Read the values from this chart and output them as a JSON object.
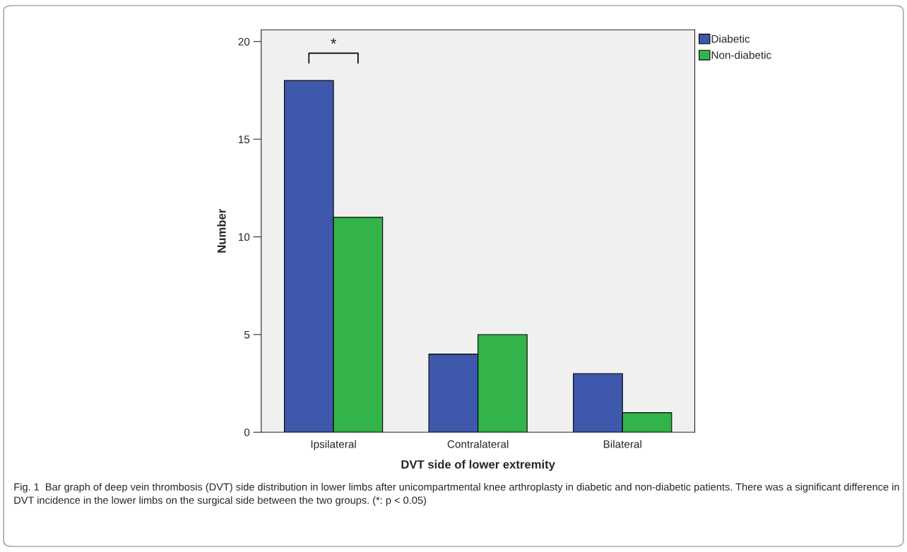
{
  "chart_data": {
    "type": "bar",
    "xlabel": "DVT side of lower extremity",
    "ylabel": "Number",
    "categories": [
      "Ipsilateral",
      "Contralateral",
      "Bilateral"
    ],
    "series": [
      {
        "name": "Diabetic",
        "color": "#3e58ac",
        "values": [
          18,
          4,
          3
        ]
      },
      {
        "name": "Non-diabetic",
        "color": "#33b44a",
        "values": [
          11,
          5,
          1
        ]
      }
    ],
    "ylim": [
      0,
      20.6
    ],
    "yticks": [
      0,
      5,
      10,
      15,
      20
    ],
    "grid": false,
    "legend": "top right",
    "annotations": [
      "*",
      "Fig. 1  Bar graph of deep vein thrombosis (DVT) side distribution in lower limbs after unicompartmental knee arthroplasty in diabetic and non-diabetic patients. There was a significant difference in DVT incidence in the lower limbs on the surgical side between the two groups. (*: p < 0.05)"
    ]
  }
}
